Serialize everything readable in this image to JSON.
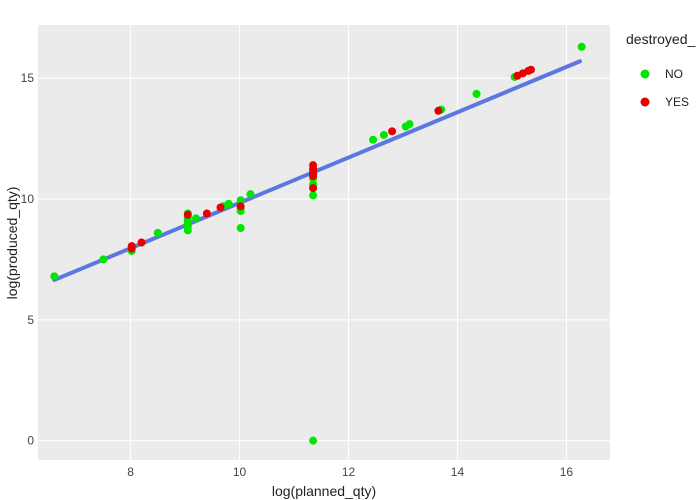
{
  "chart_data": {
    "type": "scatter",
    "xlabel": "log(planned_qty)",
    "ylabel": "log(produced_qty)",
    "xlim": [
      6.3,
      16.8
    ],
    "ylim": [
      -0.8,
      17.2
    ],
    "xticks": [
      8,
      10,
      12,
      14,
      16
    ],
    "yticks": [
      0,
      5,
      10,
      15
    ],
    "grid": true,
    "legend": {
      "title": "destroyed_",
      "position": "right"
    },
    "colors": {
      "NO": "#00e600",
      "YES": "#e60000",
      "fit": "#5a78e0",
      "panel": "#ebebeb",
      "grid": "#ffffff"
    },
    "fit_line": {
      "x": [
        6.6,
        16.25
      ],
      "y": [
        6.65,
        15.7
      ]
    },
    "series": [
      {
        "name": "NO",
        "points": [
          [
            6.6,
            6.8
          ],
          [
            7.5,
            7.5
          ],
          [
            8.02,
            7.85
          ],
          [
            8.5,
            8.6
          ],
          [
            9.05,
            8.7
          ],
          [
            9.05,
            8.85
          ],
          [
            9.05,
            9.0
          ],
          [
            9.05,
            9.1
          ],
          [
            9.05,
            9.2
          ],
          [
            9.05,
            9.4
          ],
          [
            9.2,
            9.2
          ],
          [
            9.7,
            9.7
          ],
          [
            9.8,
            9.8
          ],
          [
            10.02,
            9.5
          ],
          [
            10.02,
            9.6
          ],
          [
            10.02,
            9.95
          ],
          [
            10.02,
            8.8
          ],
          [
            10.2,
            10.2
          ],
          [
            11.35,
            10.15
          ],
          [
            11.35,
            10.45
          ],
          [
            11.35,
            10.6
          ],
          [
            11.35,
            10.85
          ],
          [
            11.35,
            0.0
          ],
          [
            12.45,
            12.45
          ],
          [
            12.65,
            12.65
          ],
          [
            13.05,
            13.0
          ],
          [
            13.12,
            13.1
          ],
          [
            13.7,
            13.7
          ],
          [
            14.35,
            14.35
          ],
          [
            15.05,
            15.05
          ],
          [
            16.28,
            16.3
          ]
        ]
      },
      {
        "name": "YES",
        "points": [
          [
            8.02,
            7.95
          ],
          [
            8.02,
            8.05
          ],
          [
            8.2,
            8.2
          ],
          [
            9.05,
            9.35
          ],
          [
            9.4,
            9.4
          ],
          [
            9.65,
            9.65
          ],
          [
            10.02,
            9.7
          ],
          [
            11.35,
            10.45
          ],
          [
            11.35,
            10.95
          ],
          [
            11.35,
            11.05
          ],
          [
            11.35,
            11.15
          ],
          [
            11.35,
            11.25
          ],
          [
            11.35,
            11.4
          ],
          [
            12.8,
            12.8
          ],
          [
            13.65,
            13.65
          ],
          [
            15.1,
            15.1
          ],
          [
            15.2,
            15.2
          ],
          [
            15.3,
            15.3
          ],
          [
            15.35,
            15.35
          ]
        ]
      }
    ]
  }
}
